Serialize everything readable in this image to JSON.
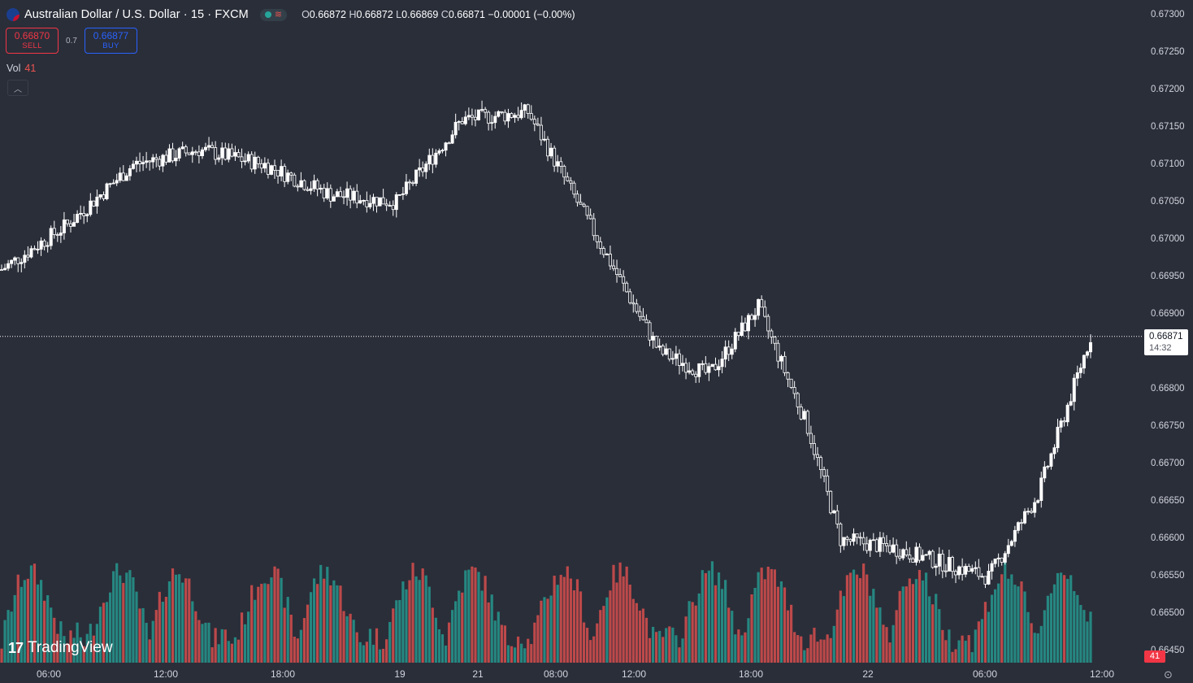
{
  "header": {
    "symbol_title": "Australian Dollar / U.S. Dollar · 15 · FXCM",
    "ohlc": {
      "open_label": "O",
      "open": "0.66872",
      "high_label": "H",
      "high": "0.66872",
      "low_label": "L",
      "low": "0.66869",
      "close_label": "C",
      "close": "0.66871",
      "change": "−0.00001 (−0.00%)"
    }
  },
  "trade": {
    "sell_price": "0.66870",
    "sell_label": "SELL",
    "spread": "0.7",
    "buy_price": "0.66877",
    "buy_label": "BUY"
  },
  "volume_legend": {
    "label": "Vol",
    "value": "41"
  },
  "logo_text": "TradingView",
  "price_scale": {
    "ticks": [
      "0.67300",
      "0.67250",
      "0.67200",
      "0.67150",
      "0.67100",
      "0.67050",
      "0.67000",
      "0.66950",
      "0.66900",
      "0.66850",
      "0.66800",
      "0.66750",
      "0.66700",
      "0.66650",
      "0.66600",
      "0.66550",
      "0.66500",
      "0.66450"
    ],
    "last_price": "0.66871",
    "countdown": "14:32",
    "volume_badge": "41"
  },
  "time_axis": [
    "06:00",
    "12:00",
    "18:00",
    "19",
    "21",
    "08:00",
    "12:00",
    "18:00",
    "22",
    "06:00",
    "12:00"
  ],
  "colors": {
    "up_volume": "#26a69a",
    "down_volume": "#ef5350",
    "candle": "#ffffff",
    "background": "#2a2e39"
  },
  "chart_data": {
    "type": "candlestick",
    "title": "Australian Dollar / U.S. Dollar · 15 · FXCM",
    "x": [
      "06:00",
      "12:00",
      "18:00",
      "19",
      "21",
      "08:00",
      "12:00",
      "18:00",
      "22",
      "06:00",
      "12:00"
    ],
    "ylim": [
      0.6644,
      0.6731
    ],
    "last_close": 0.66871,
    "close_path_approx": [
      {
        "bar": 0,
        "close": 0.6696
      },
      {
        "bar": 20,
        "close": 0.6702
      },
      {
        "bar": 40,
        "close": 0.671
      },
      {
        "bar": 60,
        "close": 0.6712
      },
      {
        "bar": 80,
        "close": 0.671
      },
      {
        "bar": 100,
        "close": 0.6706
      },
      {
        "bar": 120,
        "close": 0.6705
      },
      {
        "bar": 140,
        "close": 0.6716
      },
      {
        "bar": 160,
        "close": 0.6717
      },
      {
        "bar": 180,
        "close": 0.6701
      },
      {
        "bar": 200,
        "close": 0.6685
      },
      {
        "bar": 215,
        "close": 0.6682
      },
      {
        "bar": 230,
        "close": 0.6691
      },
      {
        "bar": 245,
        "close": 0.6675
      },
      {
        "bar": 255,
        "close": 0.666
      },
      {
        "bar": 270,
        "close": 0.6659
      },
      {
        "bar": 285,
        "close": 0.6657
      },
      {
        "bar": 300,
        "close": 0.6655
      },
      {
        "bar": 315,
        "close": 0.6666
      },
      {
        "bar": 331,
        "close": 0.66871
      }
    ],
    "volume_last": 41,
    "grid": false
  }
}
